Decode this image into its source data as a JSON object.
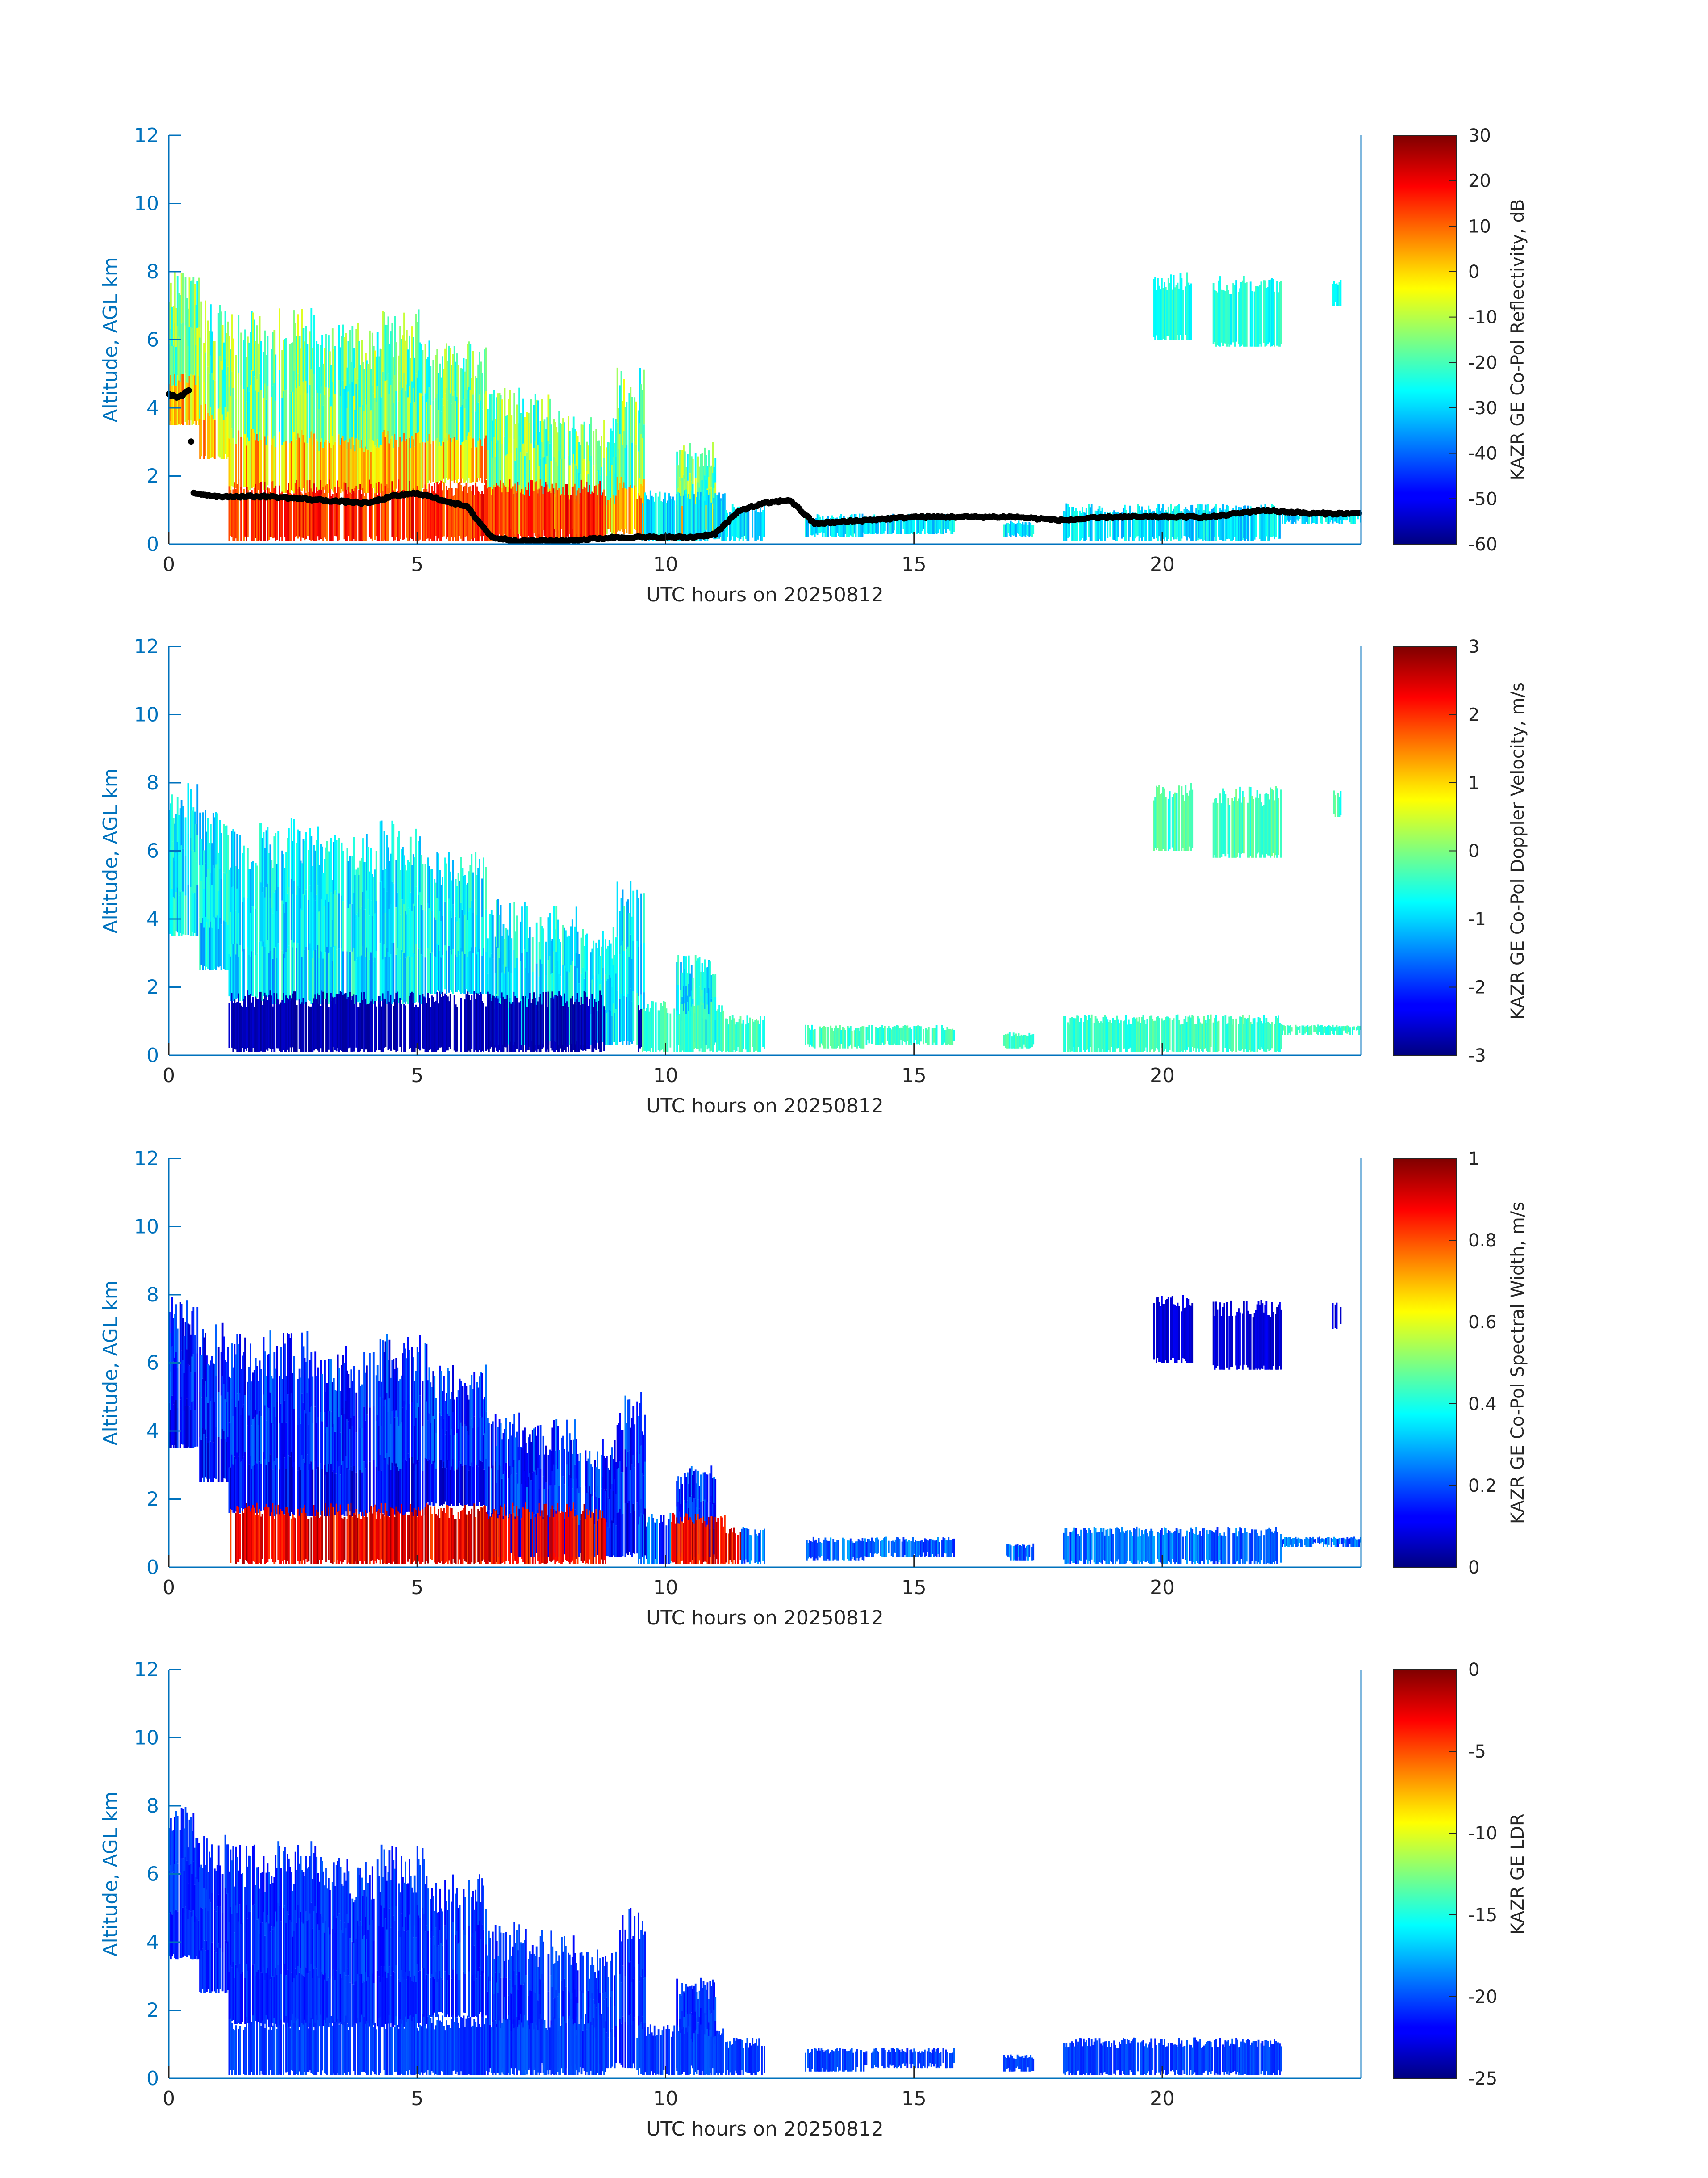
{
  "chart_data": [
    {
      "type": "heatmap",
      "xlabel": "UTC hours on 20250812",
      "ylabel": "Altitude, AGL km",
      "xlim": [
        0,
        24
      ],
      "ylim": [
        0,
        12
      ],
      "xticks": [
        "0",
        "5",
        "10",
        "15",
        "20"
      ],
      "yticks": [
        "0",
        "2",
        "4",
        "6",
        "8",
        "10",
        "12"
      ],
      "colorbar": {
        "label": "KAZR GE Co-Pol Reflectivity, dB",
        "range": [
          -60,
          30
        ],
        "ticks": [
          "-60",
          "-50",
          "-40",
          "-30",
          "-20",
          "-10",
          "0",
          "10",
          "20",
          "30"
        ],
        "colormap": "jet"
      },
      "overlay": {
        "type": "scatter",
        "color": "#000000",
        "x": [
          0.0,
          0.2,
          0.4,
          0.5,
          1.0,
          2.0,
          3.0,
          4.0,
          4.5,
          5.0,
          5.5,
          6.0,
          6.5,
          7.0,
          8.0,
          9.0,
          10.0,
          10.5,
          11.0,
          11.5,
          12.0,
          12.5,
          13.0,
          14.0,
          15.0,
          16.0,
          17.0,
          18.0,
          19.0,
          20.0,
          21.0,
          22.0,
          23.0,
          24.0
        ],
        "y": [
          4.4,
          4.3,
          4.5,
          1.5,
          1.4,
          1.4,
          1.3,
          1.2,
          1.4,
          1.5,
          1.3,
          1.1,
          0.2,
          0.1,
          0.1,
          0.2,
          0.2,
          0.2,
          0.3,
          1.0,
          1.2,
          1.3,
          0.6,
          0.7,
          0.8,
          0.8,
          0.8,
          0.7,
          0.8,
          0.8,
          0.8,
          1.0,
          0.9,
          0.9
        ]
      }
    },
    {
      "type": "heatmap",
      "xlabel": "UTC hours on 20250812",
      "ylabel": "Altitude, AGL km",
      "xlim": [
        0,
        24
      ],
      "ylim": [
        0,
        12
      ],
      "xticks": [
        "0",
        "5",
        "10",
        "15",
        "20"
      ],
      "yticks": [
        "0",
        "2",
        "4",
        "6",
        "8",
        "10",
        "12"
      ],
      "colorbar": {
        "label": "KAZR GE Co-Pol Doppler Velocity, m/s",
        "range": [
          -3,
          3
        ],
        "ticks": [
          "-3",
          "-2",
          "-1",
          "0",
          "1",
          "2",
          "3"
        ],
        "colormap": "jet"
      }
    },
    {
      "type": "heatmap",
      "xlabel": "UTC hours on 20250812",
      "ylabel": "Altitude, AGL km",
      "xlim": [
        0,
        24
      ],
      "ylim": [
        0,
        12
      ],
      "xticks": [
        "0",
        "5",
        "10",
        "15",
        "20"
      ],
      "yticks": [
        "0",
        "2",
        "4",
        "6",
        "8",
        "10",
        "12"
      ],
      "colorbar": {
        "label": "KAZR GE Co-Pol Spectral Width, m/s",
        "range": [
          0,
          1
        ],
        "ticks": [
          "0",
          "0.2",
          "0.4",
          "0.6",
          "0.8",
          "1"
        ],
        "colormap": "jet"
      }
    },
    {
      "type": "heatmap",
      "xlabel": "UTC hours on 20250812",
      "ylabel": "Altitude, AGL km",
      "xlim": [
        0,
        24
      ],
      "ylim": [
        0,
        12
      ],
      "xticks": [
        "0",
        "5",
        "10",
        "15",
        "20"
      ],
      "yticks": [
        "0",
        "2",
        "4",
        "6",
        "8",
        "10",
        "12"
      ],
      "colorbar": {
        "label": "KAZR GE LDR",
        "range": [
          -25,
          0
        ],
        "ticks": [
          "-25",
          "-20",
          "-15",
          "-10",
          "-5",
          "0"
        ],
        "colormap": "jet"
      }
    }
  ]
}
